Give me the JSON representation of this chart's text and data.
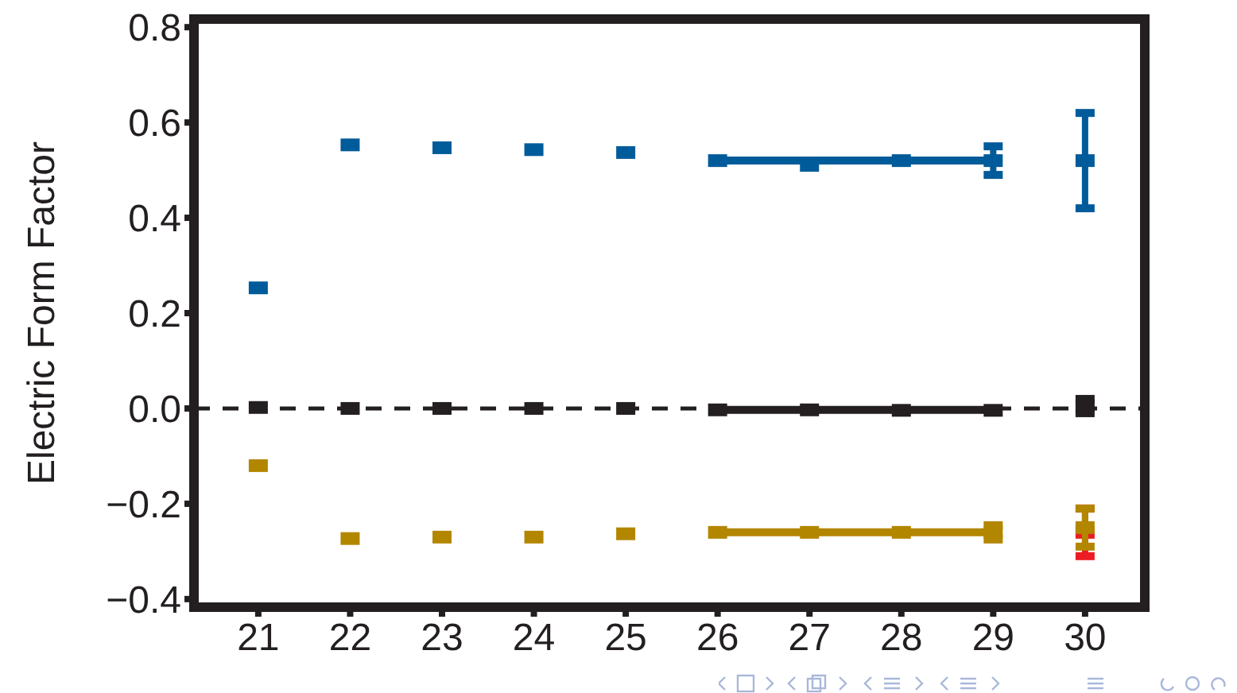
{
  "chart_data": {
    "type": "scatter",
    "ylabel": "Electric Form Factor",
    "xlim": [
      20.3,
      30.65
    ],
    "xticks": [
      21,
      22,
      23,
      24,
      25,
      26,
      27,
      28,
      29,
      30
    ],
    "ylim": [
      -0.417,
      0.817
    ],
    "yticks": [
      {
        "value": -0.4,
        "label": "−0.4"
      },
      {
        "value": -0.2,
        "label": "−0.2"
      },
      {
        "value": 0,
        "label": "0.0"
      },
      0.2,
      0.4,
      0.6,
      0.8
    ],
    "grid": false,
    "legend": false,
    "marker": "square",
    "ref_lines": [
      {
        "axis": "y",
        "value": 0,
        "color": "#231f20",
        "line_style": "dashed"
      }
    ],
    "series": [
      {
        "color": "#005b9a",
        "x": [
          21,
          22,
          23,
          24,
          25,
          26,
          27,
          28,
          29
        ],
        "values": [
          0.253,
          0.553,
          0.547,
          0.543,
          0.537,
          0.52,
          0.51,
          0.52,
          0.52
        ],
        "errors": [
          null,
          null,
          null,
          null,
          null,
          null,
          null,
          null,
          0.03
        ]
      },
      {
        "type": "line",
        "marker": "none",
        "color": "#005b9a",
        "x": [
          26,
          29
        ],
        "values": [
          0.52,
          0.52
        ]
      },
      {
        "color": "#005b9a",
        "x": [
          30
        ],
        "values": [
          0.52
        ],
        "errors": [
          0.1
        ]
      },
      {
        "color": "#231f20",
        "x": [
          21,
          22,
          23,
          24,
          25,
          26,
          27,
          28,
          29,
          30
        ],
        "values": [
          0.002,
          0,
          0,
          0,
          0,
          -0.003,
          -0.003,
          -0.004,
          -0.004,
          0.005
        ],
        "errors": [
          null,
          null,
          null,
          null,
          null,
          null,
          null,
          null,
          null,
          0.015
        ]
      },
      {
        "type": "line",
        "marker": "none",
        "color": "#231f20",
        "x": [
          26,
          29
        ],
        "values": [
          -0.003,
          -0.003
        ]
      },
      {
        "color": "#ed1c24",
        "x": [
          30
        ],
        "values": [
          -0.26
        ],
        "errors": [
          0.05
        ]
      },
      {
        "color": "#b38600",
        "x": [
          21,
          22,
          23,
          24,
          25,
          26,
          27,
          28,
          29
        ],
        "values": [
          -0.12,
          -0.273,
          -0.27,
          -0.27,
          -0.263,
          -0.26,
          -0.26,
          -0.26,
          -0.26
        ],
        "errors": [
          null,
          null,
          null,
          null,
          null,
          null,
          null,
          null,
          0.015
        ]
      },
      {
        "type": "line",
        "marker": "none",
        "color": "#b38600",
        "x": [
          26,
          29
        ],
        "values": [
          -0.26,
          -0.26
        ]
      },
      {
        "color": "#b38600",
        "x": [
          30
        ],
        "values": [
          -0.25
        ],
        "errors": [
          0.04
        ]
      }
    ]
  }
}
